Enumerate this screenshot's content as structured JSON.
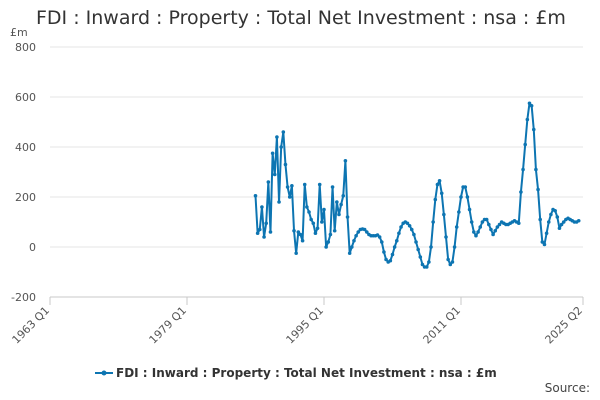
{
  "source_label": "Source:",
  "chart_data": {
    "type": "line",
    "title": "FDI : Inward : Property : Total Net Investment : nsa : £m",
    "ylabel": "£m",
    "xlabel": "",
    "ylim": [
      -200,
      800
    ],
    "yticks": [
      -200,
      0,
      200,
      400,
      600,
      800
    ],
    "xticks": [
      "1963 Q1",
      "1979 Q1",
      "1995 Q1",
      "2011 Q1",
      "2025 Q2"
    ],
    "grid": "horizontal",
    "legend_position": "bottom",
    "color": "#0d75b2",
    "series": [
      {
        "name": "FDI : Inward : Property : Total Net Investment : nsa : £m",
        "x_start": "1987 Q1",
        "values": [
          205,
          55,
          70,
          160,
          40,
          95,
          260,
          60,
          375,
          290,
          440,
          180,
          400,
          460,
          330,
          240,
          200,
          245,
          65,
          -25,
          60,
          50,
          25,
          250,
          160,
          140,
          110,
          95,
          55,
          75,
          250,
          100,
          150,
          0,
          20,
          50,
          240,
          65,
          180,
          130,
          170,
          205,
          345,
          120,
          -25,
          0,
          25,
          45,
          60,
          70,
          72,
          70,
          60,
          50,
          45,
          45,
          45,
          48,
          40,
          20,
          -20,
          -50,
          -60,
          -55,
          -30,
          0,
          25,
          55,
          80,
          95,
          100,
          95,
          85,
          70,
          50,
          20,
          -10,
          -40,
          -70,
          -80,
          -80,
          -60,
          0,
          100,
          190,
          250,
          265,
          215,
          130,
          40,
          -50,
          -70,
          -60,
          0,
          80,
          140,
          200,
          240,
          240,
          200,
          150,
          100,
          60,
          45,
          60,
          80,
          100,
          110,
          110,
          90,
          70,
          50,
          65,
          80,
          90,
          100,
          95,
          90,
          90,
          95,
          100,
          105,
          100,
          95,
          220,
          310,
          410,
          510,
          575,
          565,
          470,
          310,
          230,
          110,
          20,
          10,
          55,
          100,
          130,
          150,
          145,
          120,
          75,
          90,
          100,
          110,
          115,
          110,
          105,
          100,
          100,
          105
        ]
      }
    ]
  }
}
